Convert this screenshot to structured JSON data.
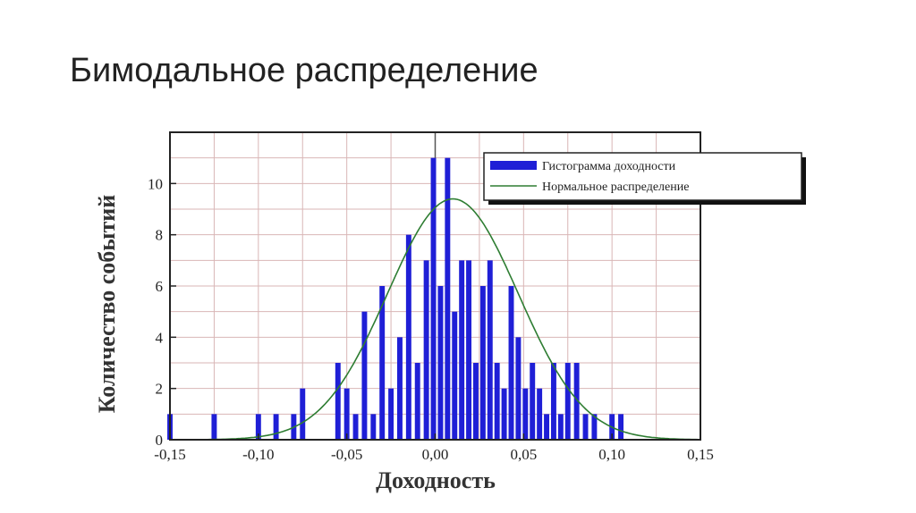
{
  "slide": {
    "title": "Бимодальное распределение"
  },
  "chart_data": {
    "type": "bar",
    "xlabel": "Доходность",
    "ylabel": "Количество событий",
    "xlim": [
      -0.15,
      0.15
    ],
    "ylim": [
      0,
      12
    ],
    "x_ticks": [
      "-0,15",
      "-0,10",
      "-0,05",
      "0,00",
      "0,05",
      "0,10",
      "0,15"
    ],
    "x_tick_values": [
      -0.15,
      -0.1,
      -0.05,
      0.0,
      0.05,
      0.1,
      0.15
    ],
    "y_ticks": [
      "0",
      "2",
      "4",
      "6",
      "8",
      "10"
    ],
    "y_tick_values": [
      0,
      2,
      4,
      6,
      8,
      10
    ],
    "bin_width": 0.003,
    "series": [
      {
        "name": "Гистограмма доходности",
        "color": "#1f1fd6",
        "x": [
          -0.15,
          -0.125,
          -0.1,
          -0.09,
          -0.08,
          -0.075,
          -0.055,
          -0.05,
          -0.045,
          -0.04,
          -0.035,
          -0.03,
          -0.025,
          -0.02,
          -0.015,
          -0.01,
          -0.005,
          -0.001,
          0.003,
          0.007,
          0.011,
          0.015,
          0.019,
          0.023,
          0.027,
          0.031,
          0.035,
          0.039,
          0.043,
          0.047,
          0.051,
          0.055,
          0.059,
          0.063,
          0.067,
          0.071,
          0.075,
          0.08,
          0.085,
          0.09,
          0.1,
          0.105
        ],
        "values": [
          1,
          1,
          1,
          1,
          1,
          2,
          3,
          2,
          1,
          5,
          1,
          6,
          2,
          4,
          8,
          3,
          7,
          11,
          6,
          11,
          5,
          7,
          7,
          3,
          6,
          7,
          3,
          2,
          6,
          4,
          2,
          3,
          2,
          1,
          3,
          1,
          3,
          3,
          1,
          1,
          1,
          1
        ]
      },
      {
        "name": "Нормальное распределение",
        "color": "#2e7d32",
        "type": "line",
        "mean": 0.01,
        "std": 0.037,
        "peak": 9.4
      }
    ],
    "grid": true,
    "legend": "top-right"
  }
}
